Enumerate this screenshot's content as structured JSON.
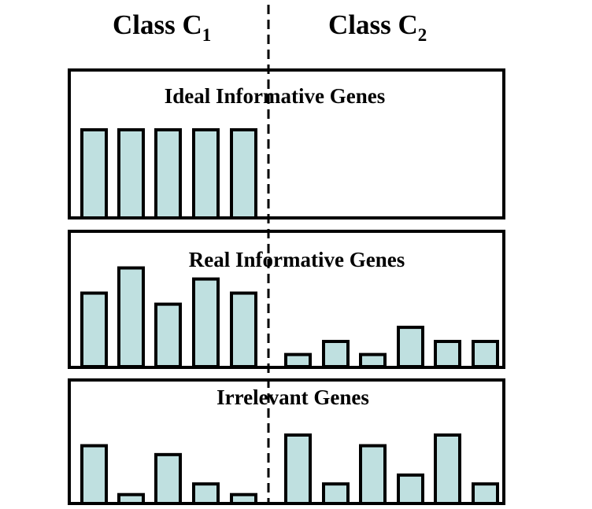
{
  "headers": {
    "class1": {
      "main": "Class C",
      "sub": "1"
    },
    "class2": {
      "main": "Class C",
      "sub": "2"
    }
  },
  "colors": {
    "bar_fill": "#bfe0e0",
    "stroke": "#000000",
    "background": "#ffffff"
  },
  "panels": [
    {
      "title": "Ideal Informative Genes",
      "class1_levels": [
        1,
        1,
        1,
        1,
        1
      ],
      "class2_levels": []
    },
    {
      "title": "Real Informative Genes",
      "class1_levels": [
        0.73,
        0.98,
        0.62,
        0.87,
        0.73
      ],
      "class2_levels": [
        0.12,
        0.25,
        0.12,
        0.39,
        0.25,
        0.25
      ]
    },
    {
      "title": "Irrelevant Genes",
      "class1_levels": [
        0.65,
        0.1,
        0.55,
        0.22,
        0.1
      ],
      "class2_levels": [
        0.77,
        0.22,
        0.65,
        0.32,
        0.77,
        0.22
      ]
    }
  ]
}
